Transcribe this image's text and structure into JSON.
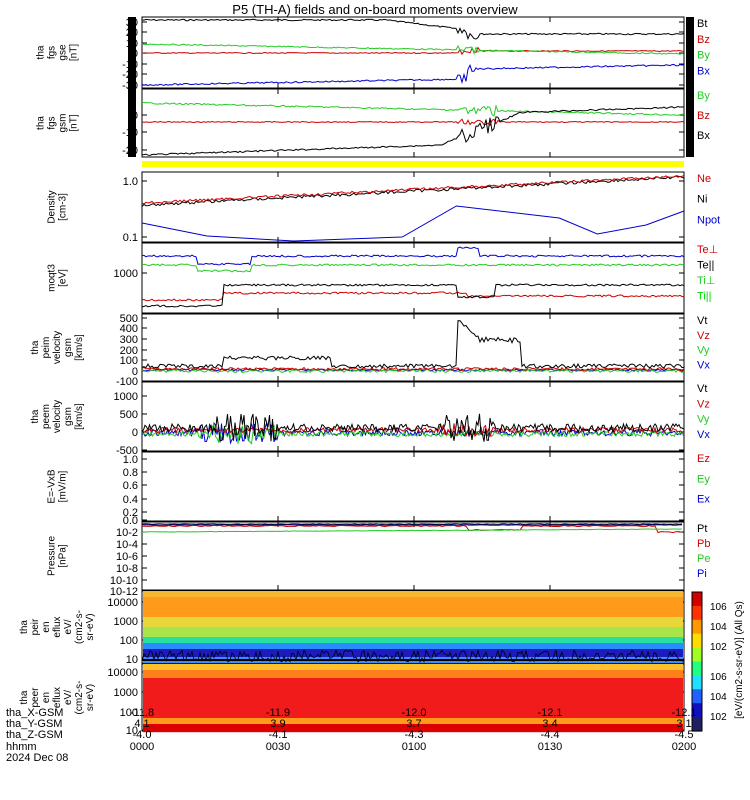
{
  "title": "P5 (TH-A) fields and on-board moments overview",
  "colors": {
    "black": "#000000",
    "red": "#cc0000",
    "green": "#22dd22",
    "blue": "#0000cc",
    "yellow": "#ffff00",
    "bright_green": "#00ee00"
  },
  "panels": [
    {
      "id": "fgs-gse",
      "ylabel": [
        "tha",
        "fgs",
        "gse",
        "[nT]"
      ],
      "ticks": [
        "30",
        "20",
        "10",
        "0",
        "-10",
        "-20",
        "-30"
      ],
      "legend": [
        {
          "t": "Bt",
          "c": "#000000"
        },
        {
          "t": "Bz",
          "c": "#cc0000"
        },
        {
          "t": "By",
          "c": "#22cc22"
        },
        {
          "t": "Bx",
          "c": "#0000cc"
        }
      ]
    },
    {
      "id": "fgs-gsm",
      "ylabel": [
        "tha",
        "fgs",
        "gsm",
        "[nT]"
      ],
      "ticks": [
        "0",
        "-10",
        "-20"
      ],
      "legend": [
        {
          "t": "By",
          "c": "#22cc22"
        },
        {
          "t": "Bz",
          "c": "#cc0000"
        },
        {
          "t": "Bx",
          "c": "#000000"
        }
      ]
    },
    {
      "id": "density",
      "ylabel": [
        "Density",
        "[cm-3]"
      ],
      "ticks": [
        "1.0",
        "0.1"
      ],
      "legend": [
        {
          "t": "Ne",
          "c": "#cc0000"
        },
        {
          "t": "Ni",
          "c": "#000000"
        },
        {
          "t": "Npot",
          "c": "#0000cc"
        }
      ]
    },
    {
      "id": "temperature",
      "ylabel": [
        "moqt3",
        "[eV]"
      ],
      "ticks": [
        "1000"
      ],
      "legend": [
        {
          "t": "Te⊥",
          "c": "#cc0000"
        },
        {
          "t": "Te||",
          "c": "#000000"
        },
        {
          "t": "Ti⊥",
          "c": "#22cc22"
        },
        {
          "t": "Ti||",
          "c": "#00dd00"
        }
      ]
    },
    {
      "id": "peim-velocity",
      "ylabel": [
        "tha",
        "peim",
        "velocity",
        "gsm",
        "[km/s]"
      ],
      "ticks": [
        "500",
        "400",
        "300",
        "200",
        "100",
        "0",
        "-100"
      ],
      "legend": [
        {
          "t": "Vt",
          "c": "#000000"
        },
        {
          "t": "Vz",
          "c": "#cc0000"
        },
        {
          "t": "Vy",
          "c": "#22cc22"
        },
        {
          "t": "Vx",
          "c": "#0000cc"
        }
      ]
    },
    {
      "id": "peem-velocity",
      "ylabel": [
        "tha",
        "peem",
        "velocity",
        "gsm",
        "[km/s]"
      ],
      "ticks": [
        "1000",
        "500",
        "0",
        "-500"
      ],
      "legend": [
        {
          "t": "Vt",
          "c": "#000000"
        },
        {
          "t": "Vz",
          "c": "#cc0000"
        },
        {
          "t": "Vy",
          "c": "#22cc22"
        },
        {
          "t": "Vx",
          "c": "#0000cc"
        }
      ]
    },
    {
      "id": "efield",
      "ylabel": [
        "E=-VxB",
        "[mV/m]"
      ],
      "ticks": [
        "1.0",
        "0.8",
        "0.6",
        "0.4",
        "0.2",
        "0.0"
      ],
      "legend": [
        {
          "t": "Ez",
          "c": "#cc0000"
        },
        {
          "t": "Ey",
          "c": "#22cc22"
        },
        {
          "t": "Ex",
          "c": "#0000cc"
        }
      ]
    },
    {
      "id": "pressure",
      "ylabel": [
        "Pressure",
        "[nPa]"
      ],
      "ticks": [
        "10-2",
        "10-4",
        "10-6",
        "10-8",
        "10-10",
        "10-12"
      ],
      "legend": [
        {
          "t": "Pt",
          "c": "#000000"
        },
        {
          "t": "Pb",
          "c": "#cc0000"
        },
        {
          "t": "Pe",
          "c": "#22cc22"
        },
        {
          "t": "Pi",
          "c": "#0000cc"
        }
      ]
    },
    {
      "id": "peir-spec",
      "ylabel": [
        "tha",
        "peir",
        "en",
        "eflux",
        "eV/",
        "(cm2-s-",
        "sr-eV)"
      ],
      "ticks": [
        "10000",
        "1000",
        "100",
        "10"
      ]
    },
    {
      "id": "peer-spec",
      "ylabel": [
        "tha",
        "peer",
        "en",
        "eflux",
        "eV/",
        "(cm2-s-",
        "sr-eV)"
      ],
      "ticks": [
        "10000",
        "1000",
        "100",
        "10"
      ]
    }
  ],
  "colorbar": {
    "label": "[eV/(cm2-s-sr-eV)] (All Qs)",
    "ticks_top": [
      "106",
      "104",
      "102"
    ],
    "ticks_bottom": [
      "106",
      "104",
      "102"
    ]
  },
  "footer": {
    "row_labels": [
      "tha_X-GSM",
      "tha_Y-GSM",
      "tha_Z-GSM",
      "hhmm",
      "2024 Dec 08"
    ],
    "columns": [
      {
        "x": "-11.8",
        "y": "4.1",
        "z": "-4.0",
        "t": "0000"
      },
      {
        "x": "-11.9",
        "y": "3.9",
        "z": "-4.1",
        "t": "0030"
      },
      {
        "x": "-12.0",
        "y": "3.7",
        "z": "-4.3",
        "t": "0100"
      },
      {
        "x": "-12.1",
        "y": "3.4",
        "z": "-4.4",
        "t": "0130"
      },
      {
        "x": "-12.1",
        "y": "3.1",
        "z": "-4.5",
        "t": "0200"
      }
    ]
  },
  "chart_data": {
    "type": "line",
    "title": "P5 (TH-A) fields and on-board moments overview",
    "x_ticks": [
      "0000",
      "0030",
      "0100",
      "0130",
      "0200"
    ],
    "xlabel": "hhmm",
    "date": "2024 Dec 08",
    "series": [
      {
        "panel": "fgs-gse",
        "name": "Bt",
        "x": [
          "0000",
          "0030",
          "0100",
          "0130",
          "0200"
        ],
        "values": [
          30,
          28,
          27,
          15,
          10
        ]
      },
      {
        "panel": "fgs-gse",
        "name": "Bz",
        "x": [
          "0000",
          "0030",
          "0100",
          "0130",
          "0200"
        ],
        "values": [
          0,
          -2,
          -1,
          2,
          2
        ]
      },
      {
        "panel": "fgs-gse",
        "name": "By",
        "x": [
          "0000",
          "0030",
          "0100",
          "0130",
          "0200"
        ],
        "values": [
          10,
          8,
          5,
          -3,
          -2
        ]
      },
      {
        "panel": "fgs-gse",
        "name": "Bx",
        "x": [
          "0000",
          "0030",
          "0100",
          "0130",
          "0200"
        ],
        "values": [
          -28,
          -25,
          -22,
          -10,
          -5
        ]
      },
      {
        "panel": "density",
        "name": "Ne",
        "x": [
          "0000",
          "0030",
          "0100",
          "0130",
          "0200"
        ],
        "values": [
          0.5,
          0.5,
          0.6,
          1.0,
          1.1
        ]
      },
      {
        "panel": "density",
        "name": "Npot",
        "x": [
          "0000",
          "0030",
          "0100",
          "0130",
          "0200"
        ],
        "values": [
          0.15,
          0.1,
          0.2,
          0.12,
          0.15
        ]
      },
      {
        "panel": "peim-velocity",
        "name": "Vt",
        "x": [
          "0000",
          "0030",
          "0100",
          "0130",
          "0200"
        ],
        "values": [
          30,
          90,
          60,
          30,
          20
        ]
      }
    ]
  }
}
